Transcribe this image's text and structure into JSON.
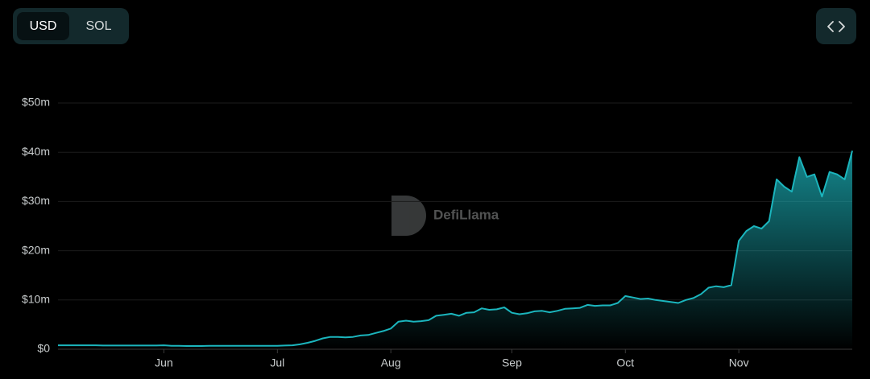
{
  "controls": {
    "currency": [
      "USD",
      "SOL"
    ]
  },
  "watermark": "DefiLlama",
  "chart_data": {
    "type": "area",
    "categories": [
      null,
      null,
      null,
      null,
      null,
      null,
      null,
      null,
      null,
      null,
      null,
      null,
      null,
      null,
      "Jun",
      null,
      null,
      null,
      null,
      null,
      null,
      null,
      null,
      null,
      null,
      null,
      null,
      null,
      null,
      "Jul",
      null,
      null,
      null,
      null,
      null,
      null,
      null,
      null,
      null,
      null,
      null,
      null,
      null,
      null,
      "Aug",
      null,
      null,
      null,
      null,
      null,
      null,
      null,
      null,
      null,
      null,
      null,
      null,
      null,
      null,
      null,
      "Sep",
      null,
      null,
      null,
      null,
      null,
      null,
      null,
      null,
      null,
      null,
      null,
      null,
      null,
      null,
      "Oct",
      null,
      null,
      null,
      null,
      null,
      null,
      null,
      null,
      null,
      null,
      null,
      null,
      null,
      null,
      "Nov",
      null,
      null,
      null,
      null,
      null,
      null,
      null,
      null,
      null,
      null,
      null,
      null,
      null,
      null,
      null
    ],
    "values": [
      0.8,
      0.8,
      0.8,
      0.8,
      0.8,
      0.8,
      0.75,
      0.75,
      0.75,
      0.75,
      0.75,
      0.75,
      0.75,
      0.75,
      0.8,
      0.7,
      0.7,
      0.65,
      0.65,
      0.65,
      0.7,
      0.7,
      0.7,
      0.7,
      0.7,
      0.7,
      0.7,
      0.7,
      0.7,
      0.7,
      0.75,
      0.8,
      1.0,
      1.3,
      1.7,
      2.2,
      2.5,
      2.5,
      2.4,
      2.5,
      2.8,
      2.9,
      3.3,
      3.7,
      4.2,
      5.6,
      5.8,
      5.6,
      5.7,
      5.9,
      6.8,
      7.0,
      7.2,
      6.8,
      7.4,
      7.5,
      8.3,
      8.0,
      8.1,
      8.5,
      7.4,
      7.1,
      7.3,
      7.7,
      7.8,
      7.5,
      7.8,
      8.2,
      8.3,
      8.4,
      9.0,
      8.8,
      8.9,
      8.9,
      9.4,
      10.8,
      10.5,
      10.2,
      10.3,
      10.0,
      9.8,
      9.6,
      9.4,
      10.0,
      10.4,
      11.2,
      12.5,
      12.8,
      12.6,
      13.0,
      22.0,
      24.0,
      25.0,
      24.5,
      26.0,
      34.5,
      33.0,
      32.0,
      39.0,
      35.0,
      35.5,
      31.0,
      36.0,
      35.5,
      34.5,
      40.3
    ],
    "color": "#1bb5bd",
    "ylim": [
      0,
      50
    ],
    "yticks": [
      {
        "value": 0,
        "label": "$0"
      },
      {
        "value": 10,
        "label": "$10m"
      },
      {
        "value": 20,
        "label": "$20m"
      },
      {
        "value": 30,
        "label": "$30m"
      },
      {
        "value": 40,
        "label": "$40m"
      },
      {
        "value": 50,
        "label": "$50m"
      }
    ],
    "grid": true
  }
}
